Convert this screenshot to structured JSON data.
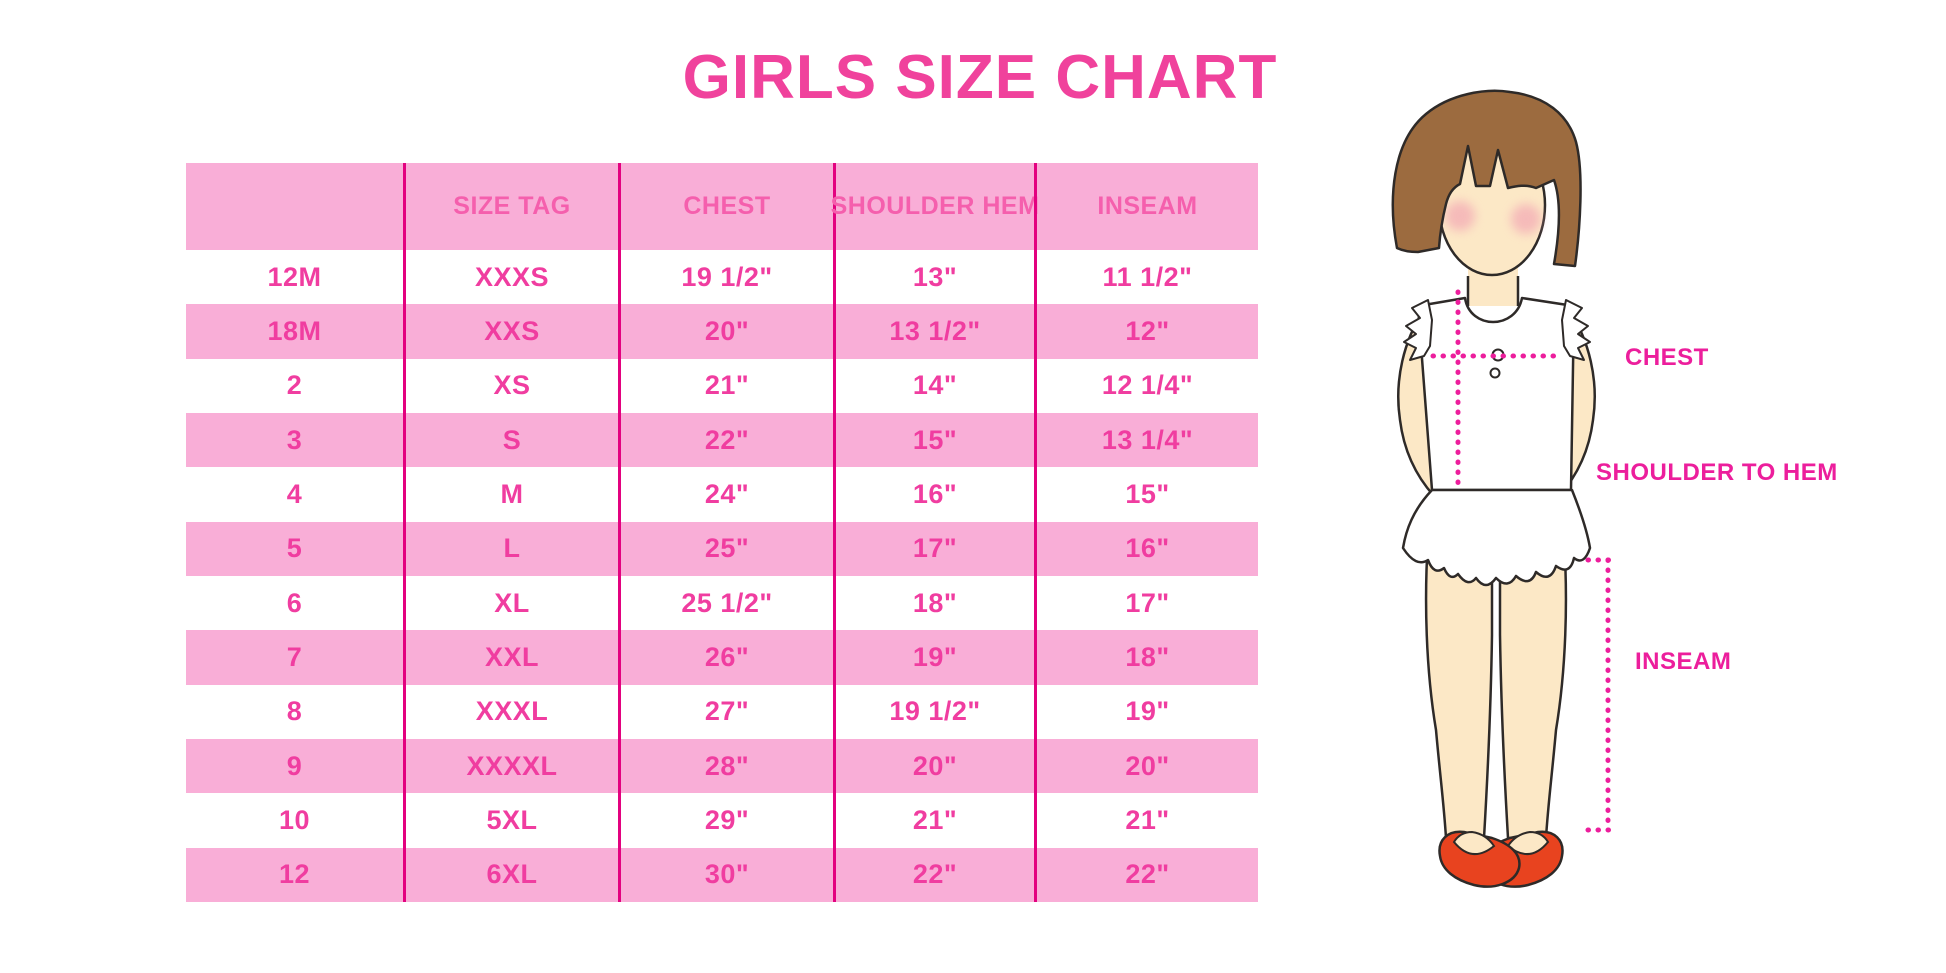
{
  "title": "GIRLS SIZE CHART",
  "colors": {
    "title_pink": "#F0429C",
    "row_band_pink": "#F9AED7",
    "column_divider": "#E3017F",
    "header_text": "#F55FAD",
    "body_text": "#F03DA0",
    "measurement_label": "#EC1E9C",
    "dotted_line": "#EC1E9C",
    "hair_brown": "#9C6B3F",
    "skin": "#FCE8C6",
    "blush": "#F2A3B3",
    "shoe_red": "#E8431F",
    "outline": "#2E2A28"
  },
  "chart_data": {
    "type": "table",
    "title": "GIRLS SIZE CHART",
    "columns": [
      "",
      "SIZE TAG",
      "CHEST",
      "SHOULDER HEM",
      "INSEAM"
    ],
    "rows": [
      [
        "12M",
        "XXXS",
        "19 1/2\"",
        "13\"",
        "11 1/2\""
      ],
      [
        "18M",
        "XXS",
        "20\"",
        "13 1/2\"",
        "12\""
      ],
      [
        "2",
        "XS",
        "21\"",
        "14\"",
        "12 1/4\""
      ],
      [
        "3",
        "S",
        "22\"",
        "15\"",
        "13 1/4\""
      ],
      [
        "4",
        "M",
        "24\"",
        "16\"",
        "15\""
      ],
      [
        "5",
        "L",
        "25\"",
        "17\"",
        "16\""
      ],
      [
        "6",
        "XL",
        "25 1/2\"",
        "18\"",
        "17\""
      ],
      [
        "7",
        "XXL",
        "26\"",
        "19\"",
        "18\""
      ],
      [
        "8",
        "XXXL",
        "27\"",
        "19 1/2\"",
        "19\""
      ],
      [
        "9",
        "XXXXL",
        "28\"",
        "20\"",
        "20\""
      ],
      [
        "10",
        "5XL",
        "29\"",
        "21\"",
        "21\""
      ],
      [
        "12",
        "6XL",
        "30\"",
        "22\"",
        "22\""
      ]
    ],
    "row_band_pattern": "header pink, then alternating white/pink starting with white",
    "legend_position": "none",
    "grid": "vertical magenta dividers only"
  },
  "figure": {
    "labels": {
      "chest": "CHEST",
      "shoulder_to_hem": "SHOULDER TO HEM",
      "inseam": "INSEAM"
    }
  }
}
